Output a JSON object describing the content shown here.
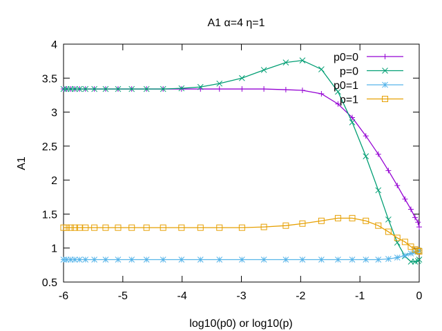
{
  "chart_data": {
    "type": "line",
    "title": "A1 α=4 η=1",
    "xlabel": "log10(p0) or log10(p)",
    "ylabel": "A1",
    "xlim": [
      -6,
      0
    ],
    "ylim": [
      0.5,
      4
    ],
    "xticks": [
      -6,
      -5,
      -4,
      -3,
      -2,
      -1,
      0
    ],
    "xtick_labels": [
      "-6",
      "-5",
      "-4",
      "-3",
      "-2",
      "-1",
      "0"
    ],
    "yticks": [
      0.5,
      1,
      1.5,
      2,
      2.5,
      3,
      3.5,
      4
    ],
    "ytick_labels": [
      "0.5",
      "1",
      "1.5",
      "2",
      "2.5",
      "3",
      "3.5",
      "4"
    ],
    "grid": false,
    "legend_position": "top-right",
    "x": [
      -6.0,
      -5.95,
      -5.88,
      -5.81,
      -5.73,
      -5.63,
      -5.48,
      -5.29,
      -5.08,
      -4.85,
      -4.6,
      -4.32,
      -4.01,
      -3.69,
      -3.37,
      -2.99,
      -2.62,
      -2.25,
      -1.97,
      -1.65,
      -1.37,
      -1.13,
      -0.9,
      -0.69,
      -0.52,
      -0.37,
      -0.24,
      -0.14,
      -0.07,
      -0.02,
      0.0
    ],
    "series": [
      {
        "name": "p0=0",
        "color": "#9400d3",
        "marker": "plus",
        "values": [
          3.34,
          3.34,
          3.34,
          3.34,
          3.34,
          3.34,
          3.34,
          3.34,
          3.34,
          3.34,
          3.34,
          3.34,
          3.34,
          3.34,
          3.34,
          3.34,
          3.34,
          3.33,
          3.32,
          3.27,
          3.12,
          2.92,
          2.65,
          2.38,
          2.14,
          1.92,
          1.72,
          1.57,
          1.45,
          1.38,
          1.31
        ]
      },
      {
        "name": "p=0",
        "color": "#009e73",
        "marker": "cross",
        "values": [
          3.34,
          3.34,
          3.34,
          3.34,
          3.34,
          3.34,
          3.34,
          3.34,
          3.34,
          3.34,
          3.34,
          3.34,
          3.35,
          3.37,
          3.42,
          3.5,
          3.62,
          3.73,
          3.76,
          3.63,
          3.3,
          2.85,
          2.35,
          1.85,
          1.42,
          1.08,
          0.88,
          0.8,
          0.8,
          0.81,
          0.83
        ]
      },
      {
        "name": "p0=1",
        "color": "#56b4e9",
        "marker": "star",
        "values": [
          0.83,
          0.83,
          0.83,
          0.83,
          0.83,
          0.83,
          0.83,
          0.83,
          0.83,
          0.83,
          0.83,
          0.83,
          0.83,
          0.83,
          0.83,
          0.83,
          0.83,
          0.83,
          0.83,
          0.83,
          0.83,
          0.83,
          0.83,
          0.83,
          0.84,
          0.86,
          0.89,
          0.92,
          0.94,
          0.95,
          0.96
        ]
      },
      {
        "name": "p=1",
        "color": "#e69f00",
        "marker": "square",
        "values": [
          1.3,
          1.3,
          1.3,
          1.3,
          1.3,
          1.3,
          1.3,
          1.3,
          1.3,
          1.3,
          1.3,
          1.3,
          1.3,
          1.3,
          1.3,
          1.3,
          1.31,
          1.33,
          1.36,
          1.4,
          1.44,
          1.44,
          1.4,
          1.33,
          1.24,
          1.15,
          1.09,
          1.02,
          0.98,
          0.96,
          0.95
        ]
      }
    ]
  }
}
